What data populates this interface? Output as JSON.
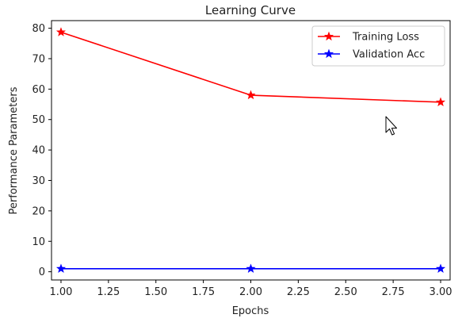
{
  "chart_data": {
    "type": "line",
    "title": "Learning Curve",
    "xlabel": "Epochs",
    "ylabel": "Performance Parameters",
    "x": [
      1.0,
      2.0,
      3.0
    ],
    "xlim": [
      0.95,
      3.05
    ],
    "ylim": [
      -2.7,
      82.5
    ],
    "xticks": [
      1.0,
      1.25,
      1.5,
      1.75,
      2.0,
      2.25,
      2.5,
      2.75,
      3.0
    ],
    "xtick_labels": [
      "1.00",
      "1.25",
      "1.50",
      "1.75",
      "2.00",
      "2.25",
      "2.50",
      "2.75",
      "3.00"
    ],
    "yticks": [
      0,
      10,
      20,
      30,
      40,
      50,
      60,
      70,
      80
    ],
    "ytick_labels": [
      "0",
      "10",
      "20",
      "30",
      "40",
      "50",
      "60",
      "70",
      "80"
    ],
    "grid": false,
    "legend_position": "top-right",
    "marker": "star",
    "series": [
      {
        "name": "Training Loss",
        "color": "#ff0000",
        "values": [
          78.7,
          58.0,
          55.7
        ]
      },
      {
        "name": "Validation Acc",
        "color": "#0000ff",
        "values": [
          1.0,
          1.0,
          1.0
        ]
      }
    ]
  },
  "overlay": {
    "cursor_icon": "mouse-pointer-icon"
  }
}
